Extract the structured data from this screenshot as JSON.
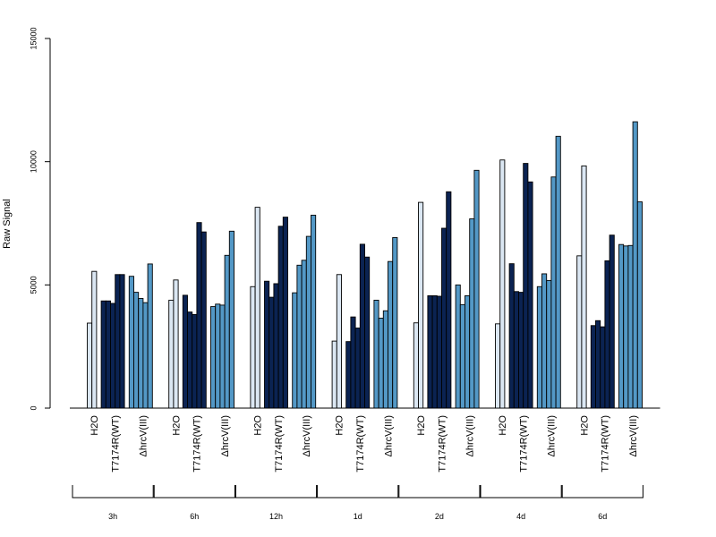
{
  "chart_data": {
    "type": "bar",
    "ylabel": "Raw Signal",
    "ylim": [
      0,
      15000
    ],
    "yticks": [
      0,
      5000,
      10000,
      15000
    ],
    "grid": false,
    "sample_labels": [
      "H2O",
      "T7174R(WT)",
      "ΔhrcV(III)"
    ],
    "time_points": [
      "3h",
      "6h",
      "12h",
      "1d",
      "2d",
      "4d",
      "6d"
    ],
    "colors": {
      "H2O": "#dbe7f3",
      "T7174R(WT)": "#0b2352",
      "ΔhrcV(III)": "#5398c6"
    },
    "groups": [
      {
        "time": "3h",
        "H2O": [
          3450,
          5550
        ],
        "T7174R(WT)": [
          4350,
          4350,
          4250,
          5420,
          5420
        ],
        "ΔhrcV(III)": [
          5350,
          4700,
          4450,
          4280,
          5850
        ]
      },
      {
        "time": "6h",
        "H2O": [
          4380,
          5200
        ],
        "T7174R(WT)": [
          4580,
          3900,
          3800,
          7530,
          7150
        ],
        "ΔhrcV(III)": [
          4120,
          4220,
          4180,
          6200,
          7180
        ]
      },
      {
        "time": "12h",
        "H2O": [
          4930,
          8150
        ],
        "T7174R(WT)": [
          5150,
          4500,
          5050,
          7380,
          7750
        ],
        "ΔhrcV(III)": [
          4680,
          5800,
          6000,
          6970,
          7830
        ]
      },
      {
        "time": "1d",
        "H2O": [
          2720,
          5420
        ],
        "T7174R(WT)": [
          2700,
          3700,
          3250,
          6650,
          6130
        ],
        "ΔhrcV(III)": [
          4380,
          3650,
          3950,
          5950,
          6920
        ]
      },
      {
        "time": "2d",
        "H2O": [
          3460,
          8350
        ],
        "T7174R(WT)": [
          4560,
          4560,
          4540,
          7300,
          8780
        ],
        "ΔhrcV(III)": [
          5000,
          4200,
          4560,
          7680,
          9650
        ]
      },
      {
        "time": "4d",
        "H2O": [
          3420,
          10070
        ],
        "T7174R(WT)": [
          5860,
          4730,
          4700,
          9930,
          9180
        ],
        "ΔhrcV(III)": [
          4930,
          5450,
          5180,
          9380,
          11030
        ]
      },
      {
        "time": "6d",
        "H2O": [
          6180,
          9830
        ],
        "T7174R(WT)": [
          3350,
          3550,
          3300,
          5980,
          7020
        ],
        "ΔhrcV(III)": [
          6640,
          6580,
          6600,
          11620,
          8370
        ]
      }
    ]
  }
}
